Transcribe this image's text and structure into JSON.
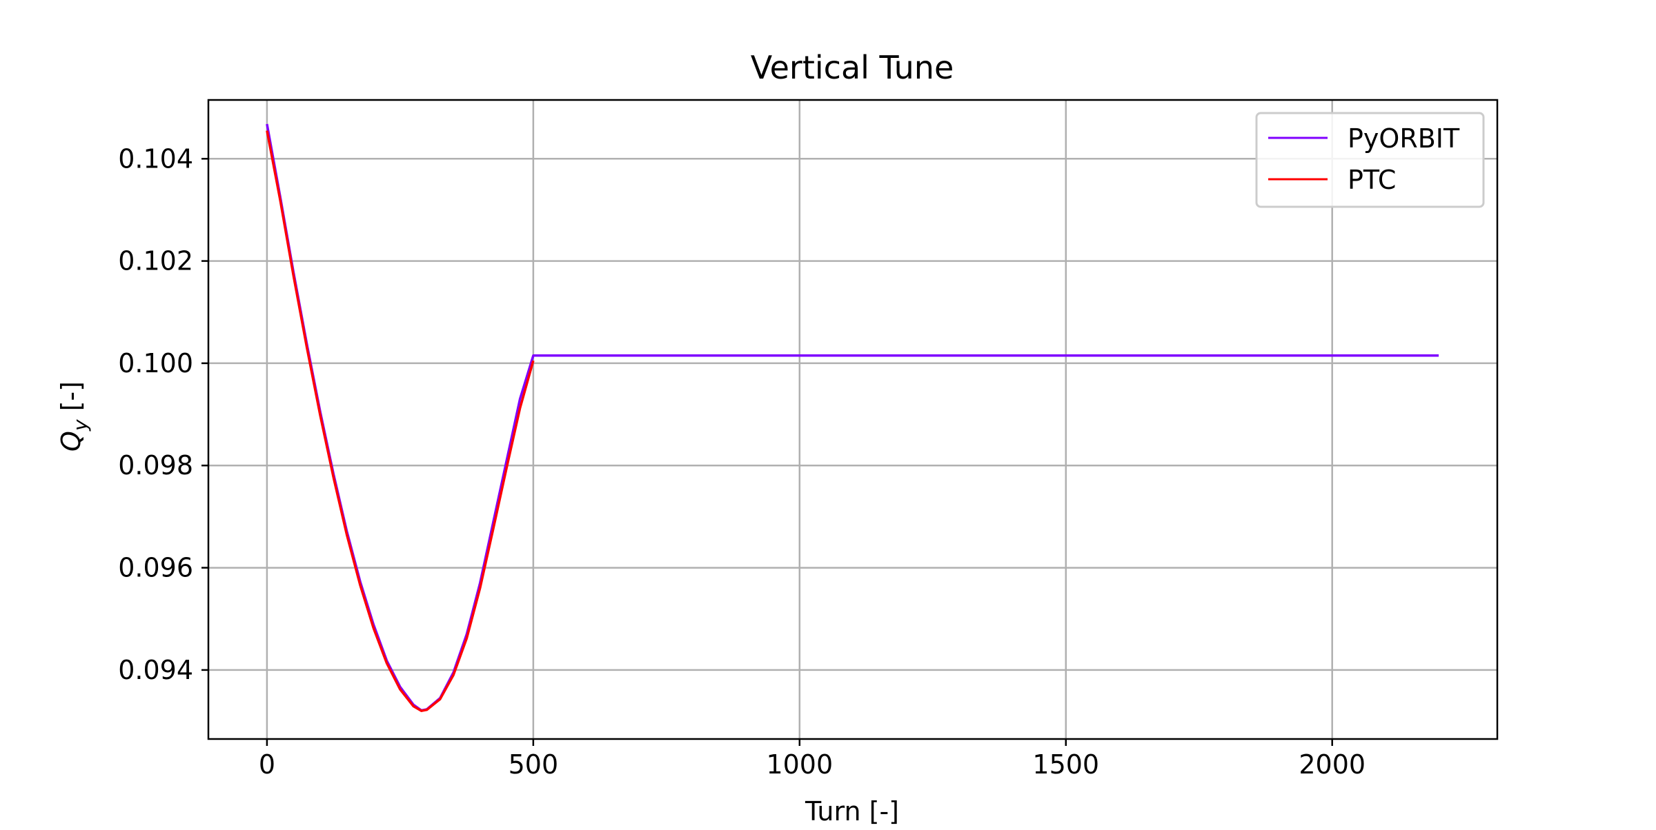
{
  "chart_data": {
    "type": "line",
    "title": "Vertical Tune",
    "xlabel": "Turn [-]",
    "ylabel_main": "Q",
    "ylabel_sub": "y",
    "ylabel_suffix": " [-]",
    "xlim": [
      -110,
      2310
    ],
    "ylim": [
      0.09265,
      0.10515
    ],
    "xticks": [
      0,
      500,
      1000,
      1500,
      2000
    ],
    "xtick_labels": [
      "0",
      "500",
      "1000",
      "1500",
      "2000"
    ],
    "yticks": [
      0.094,
      0.096,
      0.098,
      0.1,
      0.102,
      0.104
    ],
    "ytick_labels": [
      "0.094",
      "0.096",
      "0.098",
      "0.100",
      "0.102",
      "0.104"
    ],
    "grid": true,
    "legend_position": "top-right",
    "series": [
      {
        "name": "PyORBIT",
        "color": "#7f00ff",
        "x": [
          0,
          25,
          50,
          75,
          100,
          125,
          150,
          175,
          200,
          225,
          250,
          275,
          290,
          300,
          325,
          350,
          375,
          400,
          425,
          450,
          475,
          500,
          501,
          700,
          900,
          1100,
          1300,
          1500,
          1700,
          1900,
          2100,
          2200
        ],
        "y": [
          0.10468,
          0.10325,
          0.10177,
          0.10037,
          0.09905,
          0.09783,
          0.09671,
          0.09573,
          0.09489,
          0.09418,
          0.09367,
          0.09332,
          0.09321,
          0.09323,
          0.09345,
          0.09395,
          0.0947,
          0.0957,
          0.0969,
          0.0981,
          0.0993,
          0.10015,
          0.10015,
          0.10015,
          0.10015,
          0.10015,
          0.10015,
          0.10015,
          0.10015,
          0.10015,
          0.10015,
          0.10015
        ]
      },
      {
        "name": "PTC",
        "color": "#ff0000",
        "x": [
          0,
          25,
          50,
          75,
          100,
          125,
          150,
          175,
          200,
          225,
          250,
          275,
          290,
          300,
          325,
          350,
          375,
          400,
          425,
          450,
          475,
          500
        ],
        "y": [
          0.10455,
          0.10318,
          0.1017,
          0.1003,
          0.09898,
          0.09776,
          0.09664,
          0.09566,
          0.09482,
          0.09413,
          0.09362,
          0.09329,
          0.0932,
          0.09322,
          0.09343,
          0.0939,
          0.09462,
          0.0956,
          0.09677,
          0.09796,
          0.09912,
          0.10005
        ]
      }
    ]
  }
}
